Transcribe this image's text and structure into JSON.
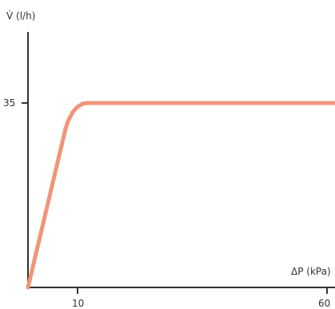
{
  "chart_data": {
    "type": "line",
    "xlabel": "ΔP (kPa)",
    "ylabel": "V̇ (l/h)",
    "x_ticks": [
      10,
      60
    ],
    "y_ticks": [
      35
    ],
    "x_tick_labels": [
      "10",
      "60"
    ],
    "y_tick_labels": [
      "35"
    ],
    "xlim": [
      0,
      60
    ],
    "ylim": [
      0,
      50
    ],
    "grid": false,
    "legend": "none",
    "series": [
      {
        "color": "#f0957a",
        "points": [
          [
            0,
            0
          ],
          [
            7.5,
            30
          ],
          [
            8,
            31.5
          ],
          [
            9,
            33.3
          ],
          [
            10,
            34.3
          ],
          [
            11,
            34.9
          ],
          [
            12,
            35
          ],
          [
            60,
            35
          ]
        ]
      }
    ]
  }
}
